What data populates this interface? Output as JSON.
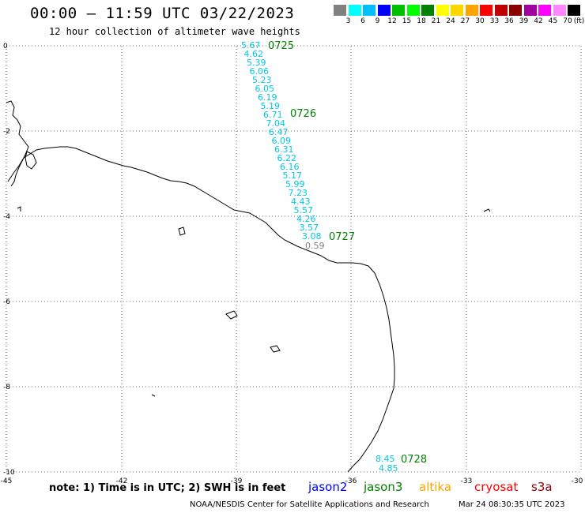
{
  "header": {
    "title": "00:00 — 11:59 UTC 03/22/2023",
    "subtitle": "12 hour collection of altimeter wave heights"
  },
  "colorbar": {
    "unit": "(ft)",
    "labels": [
      "3",
      "6",
      "9",
      "12",
      "15",
      "18",
      "21",
      "24",
      "27",
      "30",
      "33",
      "36",
      "39",
      "42",
      "45",
      "70"
    ],
    "colors": [
      "#808080",
      "#00ffff",
      "#00bfff",
      "#0000ff",
      "#00c000",
      "#00ff00",
      "#008000",
      "#ffff00",
      "#ffd700",
      "#ffa500",
      "#ff0000",
      "#c00000",
      "#8b0000",
      "#a000a0",
      "#ff00ff",
      "#ff88ff",
      "#000000"
    ]
  },
  "axes": {
    "lon_labels": [
      "-45",
      "-42",
      "-39",
      "-36",
      "-33",
      "-30"
    ],
    "lat_labels": [
      "0",
      "-2",
      "-4",
      "-6",
      "-8",
      "-10"
    ]
  },
  "passes": [
    {
      "time": "0725",
      "color": "#008000"
    },
    {
      "time": "0726",
      "color": "#008000"
    },
    {
      "time": "0727",
      "color": "#008000"
    },
    {
      "time": "0728",
      "color": "#008000"
    }
  ],
  "track_main": {
    "color": "#00c8e6",
    "values": [
      "5.67",
      "4.62",
      "5.39",
      "6.06",
      "5.23",
      "6.05",
      "6.19",
      "5.19",
      "6.71",
      "7.04",
      "6.47",
      "6.09",
      "6.31",
      "6.22",
      "6.16",
      "5.17",
      "5.99",
      "7.23",
      "4.43",
      "5.57",
      "4.26",
      "3.57",
      "3.08"
    ]
  },
  "track_low": {
    "color": "#808080",
    "values": [
      "0.59"
    ]
  },
  "track_south": {
    "color": "#00c8e6",
    "values": [
      "8.45",
      "4.85"
    ]
  },
  "footer": {
    "note": "note: 1) Time is in UTC; 2) SWH is in feet",
    "satellites": [
      {
        "name": "jason2",
        "color": "#0000ff"
      },
      {
        "name": "jason3",
        "color": "#008000"
      },
      {
        "name": "altika",
        "color": "#ffa500"
      },
      {
        "name": "cryosat",
        "color": "#ff0000"
      },
      {
        "name": "s3a",
        "color": "#8b0000"
      }
    ],
    "credit": "NOAA/NESDIS Center for Satellite Applications and Research",
    "timestamp": "Mar 24 08:30:35 UTC 2023"
  }
}
